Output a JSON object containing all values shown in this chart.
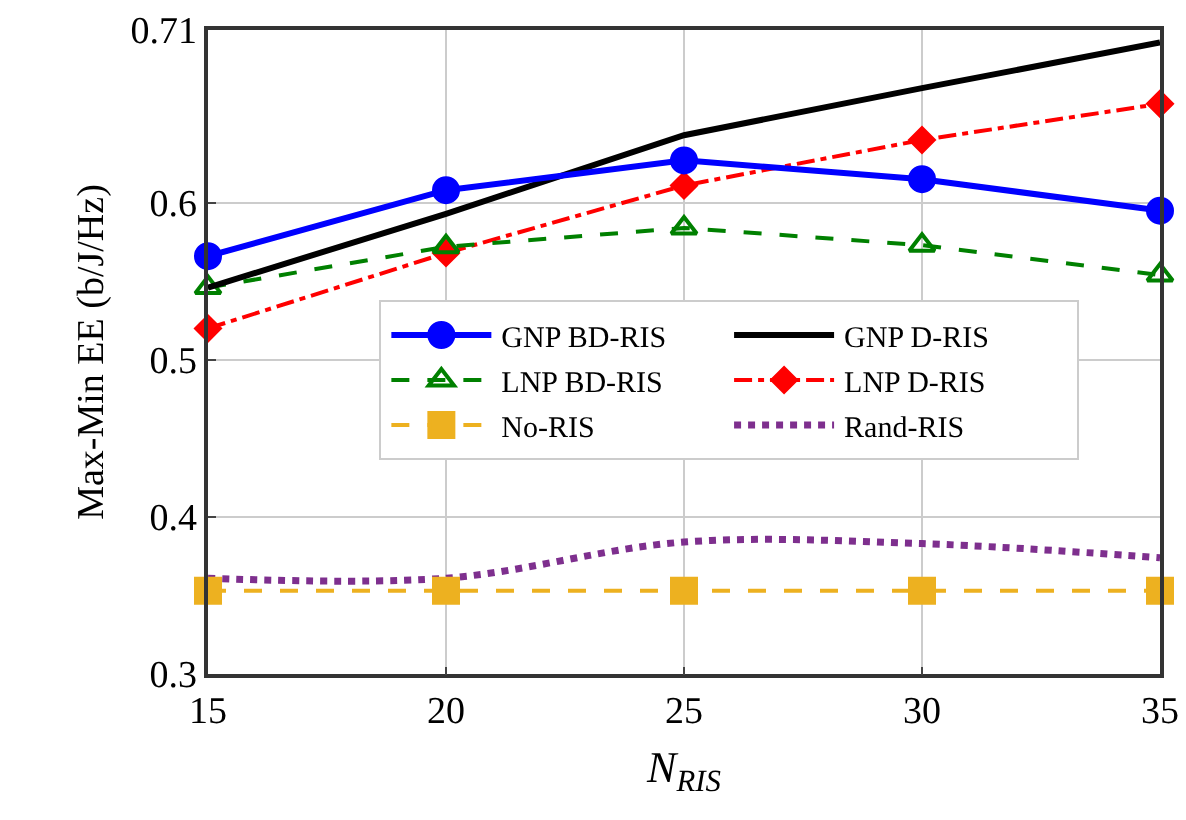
{
  "chart_data": {
    "type": "line",
    "xlabel": "N$_{RIS}$",
    "ylabel": "Max-Min EE (b/J/Hz)",
    "x": [
      15,
      20,
      25,
      30,
      35
    ],
    "series": [
      {
        "name": "GNP BD-RIS",
        "color": "#0000ff",
        "marker": "circle",
        "line_style": "solid",
        "values": [
          0.566,
          0.608,
          0.627,
          0.615,
          0.595
        ]
      },
      {
        "name": "GNP D-RIS",
        "color": "#000000",
        "marker": "none",
        "line_style": "solid",
        "values": [
          0.546,
          0.593,
          0.643,
          0.673,
          0.702
        ]
      },
      {
        "name": "LNP BD-RIS",
        "color": "#008000",
        "marker": "triangle",
        "line_style": "dashed",
        "values": [
          0.546,
          0.572,
          0.584,
          0.573,
          0.554
        ]
      },
      {
        "name": "LNP D-RIS",
        "color": "#ff0000",
        "marker": "diamond",
        "line_style": "dashdot",
        "values": [
          0.52,
          0.568,
          0.611,
          0.64,
          0.663
        ]
      },
      {
        "name": "No-RIS",
        "color": "#edb120",
        "marker": "square",
        "line_style": "dashed",
        "values": [
          0.353,
          0.353,
          0.353,
          0.353,
          0.353
        ]
      },
      {
        "name": "Rand-RIS",
        "color": "#7e2f8e",
        "marker": "none",
        "line_style": "dotted",
        "values": [
          0.361,
          0.361,
          0.384,
          0.383,
          0.374
        ]
      }
    ],
    "xlim": [
      15,
      35
    ],
    "xticks": [
      15,
      20,
      25,
      30,
      35
    ],
    "ylim": [
      0.3,
      0.71
    ],
    "yticks": [
      0.3,
      0.4,
      0.5,
      0.6,
      0.71
    ],
    "grid": true,
    "legend": "right"
  }
}
